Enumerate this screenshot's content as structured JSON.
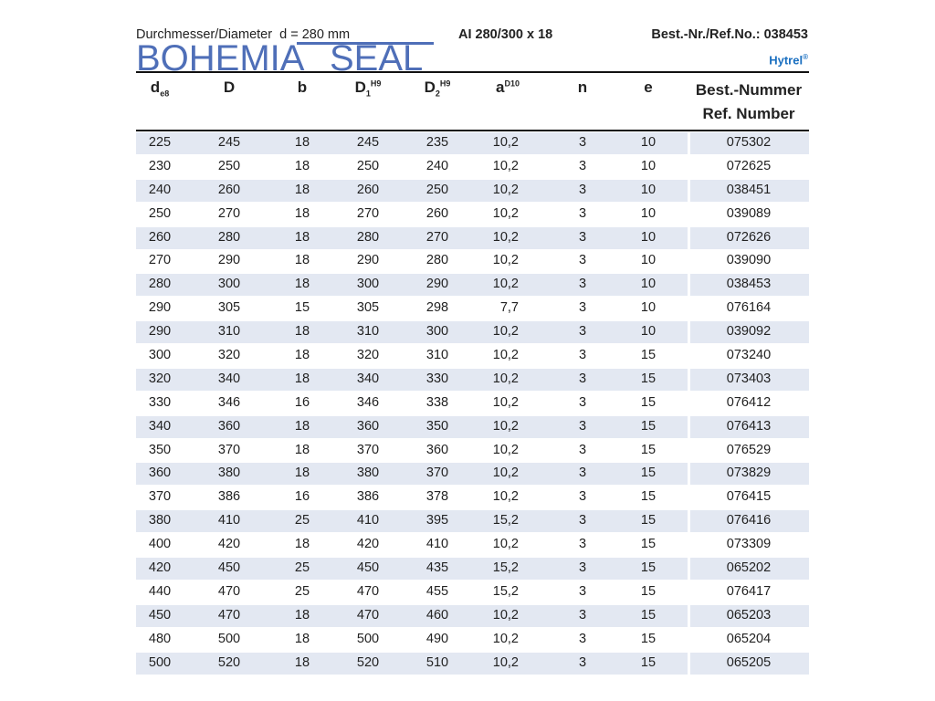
{
  "header": {
    "diameter": "Durchmesser/Diameter  d = 280 mm",
    "product": "AI 280/300 x 18",
    "ref_no": "Best.-Nr./Ref.No.: 038453",
    "material": "Hytrel",
    "material_mark": "®"
  },
  "columns": [
    {
      "main": "d",
      "sub": "e8",
      "sup": ""
    },
    {
      "main": "D",
      "sub": "",
      "sup": ""
    },
    {
      "main": "b",
      "sub": "",
      "sup": ""
    },
    {
      "main": "D",
      "sub": "1",
      "sup": "H9"
    },
    {
      "main": "D",
      "sub": "2",
      "sup": "H9"
    },
    {
      "main": "a",
      "sub": "",
      "sup": "D10"
    },
    {
      "main": "n",
      "sub": "",
      "sup": ""
    },
    {
      "main": "e",
      "sub": "",
      "sup": ""
    }
  ],
  "ref_header": {
    "line1": "Best.-Nummer",
    "line2": "Ref. Number"
  },
  "rows": [
    [
      "225",
      "245",
      "18",
      "245",
      "235",
      "10,2",
      "3",
      "10",
      "075302"
    ],
    [
      "230",
      "250",
      "18",
      "250",
      "240",
      "10,2",
      "3",
      "10",
      "072625"
    ],
    [
      "240",
      "260",
      "18",
      "260",
      "250",
      "10,2",
      "3",
      "10",
      "038451"
    ],
    [
      "250",
      "270",
      "18",
      "270",
      "260",
      "10,2",
      "3",
      "10",
      "039089"
    ],
    [
      "260",
      "280",
      "18",
      "280",
      "270",
      "10,2",
      "3",
      "10",
      "072626"
    ],
    [
      "270",
      "290",
      "18",
      "290",
      "280",
      "10,2",
      "3",
      "10",
      "039090"
    ],
    [
      "280",
      "300",
      "18",
      "300",
      "290",
      "10,2",
      "3",
      "10",
      "038453"
    ],
    [
      "290",
      "305",
      "15",
      "305",
      "298",
      "7,7",
      "3",
      "10",
      "076164"
    ],
    [
      "290",
      "310",
      "18",
      "310",
      "300",
      "10,2",
      "3",
      "10",
      "039092"
    ],
    [
      "300",
      "320",
      "18",
      "320",
      "310",
      "10,2",
      "3",
      "15",
      "073240"
    ],
    [
      "320",
      "340",
      "18",
      "340",
      "330",
      "10,2",
      "3",
      "15",
      "073403"
    ],
    [
      "330",
      "346",
      "16",
      "346",
      "338",
      "10,2",
      "3",
      "15",
      "076412"
    ],
    [
      "340",
      "360",
      "18",
      "360",
      "350",
      "10,2",
      "3",
      "15",
      "076413"
    ],
    [
      "350",
      "370",
      "18",
      "370",
      "360",
      "10,2",
      "3",
      "15",
      "076529"
    ],
    [
      "360",
      "380",
      "18",
      "380",
      "370",
      "10,2",
      "3",
      "15",
      "073829"
    ],
    [
      "370",
      "386",
      "16",
      "386",
      "378",
      "10,2",
      "3",
      "15",
      "076415"
    ],
    [
      "380",
      "410",
      "25",
      "410",
      "395",
      "15,2",
      "3",
      "15",
      "076416"
    ],
    [
      "400",
      "420",
      "18",
      "420",
      "410",
      "10,2",
      "3",
      "15",
      "073309"
    ],
    [
      "420",
      "450",
      "25",
      "450",
      "435",
      "15,2",
      "3",
      "15",
      "065202"
    ],
    [
      "440",
      "470",
      "25",
      "470",
      "455",
      "15,2",
      "3",
      "15",
      "076417"
    ],
    [
      "450",
      "470",
      "18",
      "470",
      "460",
      "10,2",
      "3",
      "15",
      "065203"
    ],
    [
      "480",
      "500",
      "18",
      "500",
      "490",
      "10,2",
      "3",
      "15",
      "065204"
    ],
    [
      "500",
      "520",
      "18",
      "520",
      "510",
      "10,2",
      "3",
      "15",
      "065205"
    ]
  ],
  "watermark": {
    "text1": "BOHEMIA",
    "text2": "SEAL"
  },
  "colors": {
    "stripe": "#e3e8f2",
    "accent": "#1a6fc0",
    "watermark": "#4f6fb8"
  }
}
